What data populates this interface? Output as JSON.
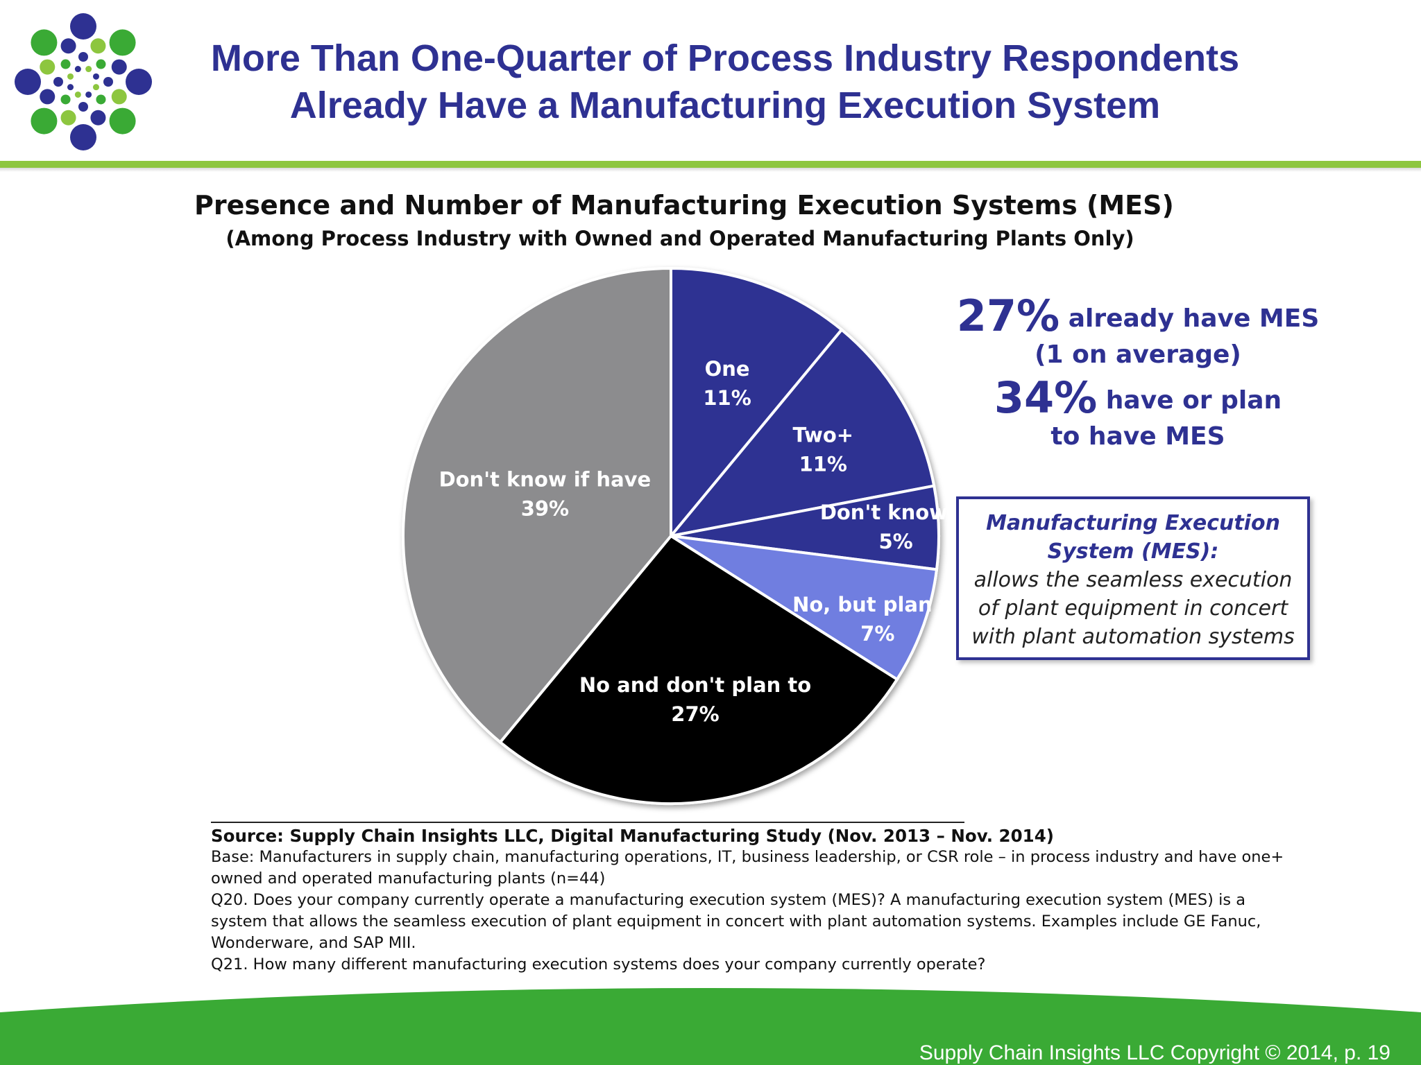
{
  "slide": {
    "title_line1": "More Than One-Quarter of Process Industry Respondents",
    "title_line2": "Already Have a Manufacturing Execution System",
    "logo_icon": "dot-burst-logo-icon",
    "colors": {
      "title": "#2e3192",
      "accent_green": "#8dc63f",
      "footer_green": "#3aaa35"
    }
  },
  "chart_data": {
    "type": "pie",
    "title": "Presence and Number of Manufacturing Execution Systems (MES)",
    "subtitle": "(Among Process Industry with Owned and Operated Manufacturing Plants Only)",
    "slices": [
      {
        "label": "One",
        "value": 11,
        "display": "11%",
        "color": "#2e3192",
        "text_color": "#ffffff"
      },
      {
        "label": "Two+",
        "value": 11,
        "display": "11%",
        "color": "#2e3192",
        "text_color": "#ffffff"
      },
      {
        "label": "Don't know #",
        "value": 5,
        "display": "5%",
        "color": "#2e3192",
        "text_color": "#ffffff"
      },
      {
        "label": "No, but plan to",
        "value": 7,
        "display": "7%",
        "color": "#6f7ee0",
        "text_color": "#ffffff"
      },
      {
        "label": "No and don't plan to",
        "value": 27,
        "display": "27%",
        "color": "#000000",
        "text_color": "#ffffff"
      },
      {
        "label": "Don't know if have",
        "value": 39,
        "display": "39%",
        "color": "#8c8c8e",
        "text_color": "#ffffff"
      }
    ],
    "start_angle_deg": 0,
    "direction": "clockwise"
  },
  "callout": {
    "stat1_pct": "27%",
    "stat1_text": "already have MES",
    "stat1_sub": "(1 on average)",
    "stat2_pct": "34%",
    "stat2_text": "have or plan",
    "stat2_sub": "to have MES"
  },
  "definition": {
    "term_line1": "Manufacturing Execution",
    "term_line2": "System (MES):",
    "text_line1": "allows the seamless execution",
    "text_line2": "of plant equipment in concert",
    "text_line3": "with plant automation systems"
  },
  "source": {
    "source_line": "Source:  Supply Chain Insights LLC, Digital Manufacturing Study (Nov. 2013 – Nov. 2014)",
    "base_line1": "Base: Manufacturers in supply chain, manufacturing operations, IT, business leadership, or CSR role – in process industry and have one+",
    "base_line2": "owned and operated manufacturing plants (n=44)",
    "q20_line1": "Q20. Does your company currently operate a manufacturing execution system (MES)? A manufacturing execution system (MES) is a",
    "q20_line2": "system that allows the seamless execution of plant equipment in concert with plant automation systems.  Examples include GE Fanuc,",
    "q20_line3": "Wonderware, and SAP MII.",
    "q21_line": "Q21. How many different manufacturing execution systems does your company currently operate?"
  },
  "footer": {
    "copyright": "Supply Chain Insights LLC Copyright © 2014, p. 19"
  }
}
